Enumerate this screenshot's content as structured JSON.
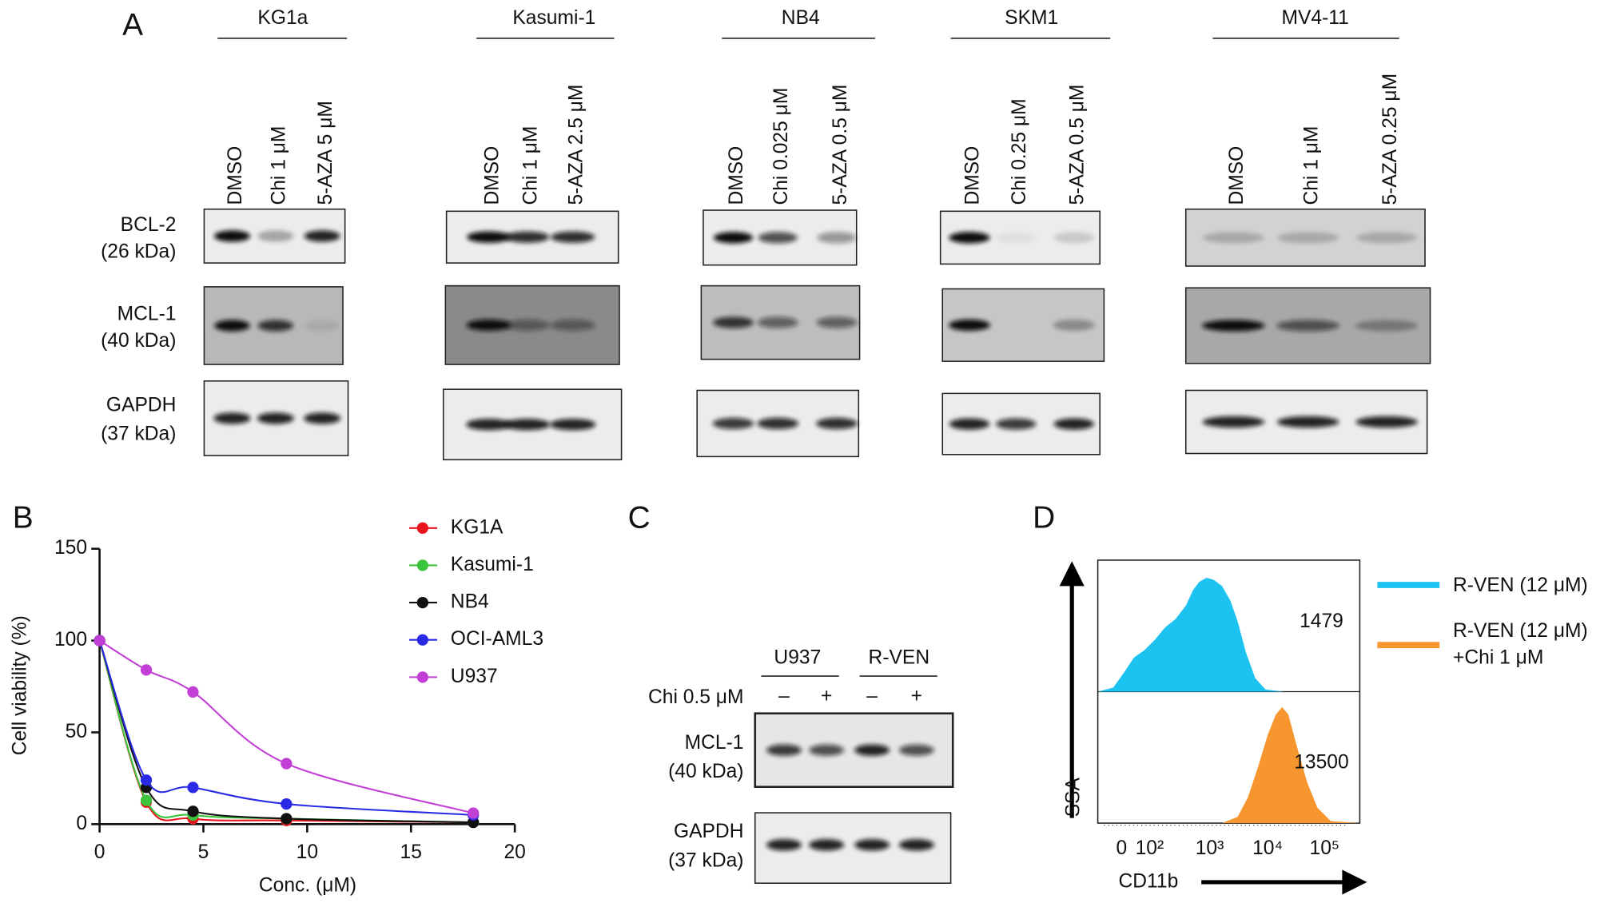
{
  "panel_a": {
    "label": "A",
    "rows": [
      {
        "protein": "BCL-2",
        "size": "(26 kDa)"
      },
      {
        "protein": "MCL-1",
        "size": "(40 kDa)"
      },
      {
        "protein": "GAPDH",
        "size": "(37 kDa)"
      }
    ],
    "cell_lines": [
      {
        "name": "KG1a",
        "lanes": [
          "DMSO",
          "Chi 1 μM",
          "5-AZA 5 μM"
        ]
      },
      {
        "name": "Kasumi-1",
        "lanes": [
          "DMSO",
          "Chi 1 μM",
          "5-AZA 2.5 μM"
        ]
      },
      {
        "name": "NB4",
        "lanes": [
          "DMSO",
          "Chi 0.025 μM",
          "5-AZA 0.5 μM"
        ]
      },
      {
        "name": "SKM1",
        "lanes": [
          "DMSO",
          "Chi 0.25 μM",
          "5-AZA 0.5 μM"
        ]
      },
      {
        "name": "MV4-11",
        "lanes": [
          "DMSO",
          "Chi 1 μM",
          "5-AZA 0.25 μM"
        ]
      }
    ]
  },
  "chart_data": {
    "type": "scatter",
    "label": "B",
    "xlabel": "Conc. (μM)",
    "ylabel": "Cell viability (%)",
    "x": [
      0,
      2.25,
      4.5,
      9,
      18
    ],
    "xlim": [
      0,
      20
    ],
    "xticks": [
      0,
      5,
      10,
      15,
      20
    ],
    "ylim": [
      0,
      150
    ],
    "yticks": [
      0,
      50,
      100,
      150
    ],
    "series": [
      {
        "name": "KG1A",
        "color": "#e8141c",
        "values": [
          100,
          12,
          3,
          2,
          1
        ]
      },
      {
        "name": "Kasumi-1",
        "color": "#3cc43c",
        "values": [
          100,
          13,
          5,
          3,
          1
        ]
      },
      {
        "name": "NB4",
        "color": "#111111",
        "values": [
          100,
          20,
          7,
          3,
          1
        ]
      },
      {
        "name": "OCI-AML3",
        "color": "#2a2ae6",
        "values": [
          100,
          24,
          20,
          11,
          5
        ]
      },
      {
        "name": "U937",
        "color": "#c23fd6",
        "values": [
          100,
          84,
          72,
          33,
          6
        ]
      }
    ]
  },
  "panel_c": {
    "label": "C",
    "groups": [
      "U937",
      "R-VEN"
    ],
    "treatment": "Chi 0.5 μM",
    "signs": [
      "–",
      "+",
      "–",
      "+"
    ],
    "rows": [
      {
        "protein": "MCL-1",
        "size": "(40 kDa)"
      },
      {
        "protein": "GAPDH",
        "size": "(37 kDa)"
      }
    ]
  },
  "panel_d": {
    "label": "D",
    "y_axis": "SSA",
    "x_axis": "CD11b",
    "x_tick_labels": [
      "0",
      "10²",
      "10³",
      "10⁴",
      "10⁵"
    ],
    "values": [
      "1479",
      "13500"
    ],
    "legend": [
      {
        "text": "R-VEN (12 μM)",
        "color": "#1cc3f0"
      },
      {
        "text": "R-VEN (12 μM)",
        "text2": "+Chi 1 μM",
        "color": "#f7952f"
      }
    ]
  }
}
